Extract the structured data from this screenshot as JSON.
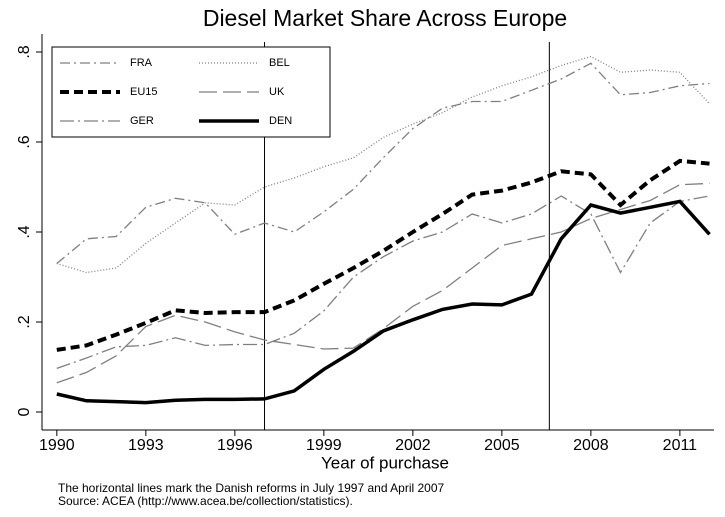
{
  "chart_data": {
    "type": "line",
    "title": "Diesel Market Share Across Europe",
    "x_label": "Year of purchase",
    "notes": [
      "The horizontal lines mark the Danish reforms in July 1997 and April 2007",
      "Source: ACEA (http://www.acea.be/collection/statistics)."
    ],
    "x": [
      1990,
      1991,
      1992,
      1993,
      1994,
      1995,
      1996,
      1997,
      1998,
      1999,
      2000,
      2001,
      2002,
      2003,
      2004,
      2005,
      2006,
      2007,
      2008,
      2009,
      2010,
      2011,
      2012
    ],
    "series": [
      {
        "name": "FRA",
        "color": "#7f7f7f",
        "width": 1.3,
        "dash": "10 4 2 4",
        "values": [
          0.33,
          0.385,
          0.39,
          0.455,
          0.475,
          0.465,
          0.395,
          0.42,
          0.4,
          0.445,
          0.495,
          0.565,
          0.63,
          0.675,
          0.69,
          0.69,
          0.715,
          0.74,
          0.775,
          0.705,
          0.71,
          0.725,
          0.73
        ]
      },
      {
        "name": "BEL",
        "color": "#7f7f7f",
        "width": 1.3,
        "dash": "1 2",
        "values": [
          0.33,
          0.31,
          0.32,
          0.375,
          0.42,
          0.465,
          0.46,
          0.5,
          0.52,
          0.545,
          0.565,
          0.61,
          0.64,
          0.665,
          0.7,
          0.725,
          0.745,
          0.77,
          0.79,
          0.755,
          0.76,
          0.755,
          0.685
        ]
      },
      {
        "name": "EU15",
        "color": "#000000",
        "width": 4,
        "dash": "9 5",
        "values": [
          0.138,
          0.148,
          0.172,
          0.198,
          0.226,
          0.22,
          0.222,
          0.222,
          0.248,
          0.285,
          0.32,
          0.358,
          0.4,
          0.44,
          0.483,
          0.492,
          0.51,
          0.535,
          0.528,
          0.46,
          0.515,
          0.558,
          0.552
        ]
      },
      {
        "name": "UK",
        "color": "#7f7f7f",
        "width": 1.3,
        "dash": "18 6",
        "values": [
          0.065,
          0.088,
          0.125,
          0.19,
          0.215,
          0.2,
          0.178,
          0.16,
          0.15,
          0.14,
          0.142,
          0.185,
          0.235,
          0.27,
          0.32,
          0.37,
          0.385,
          0.4,
          0.43,
          0.45,
          0.47,
          0.505,
          0.508
        ]
      },
      {
        "name": "GER",
        "color": "#7f7f7f",
        "width": 1.3,
        "dash": "14 4 2 4",
        "values": [
          0.097,
          0.12,
          0.145,
          0.148,
          0.165,
          0.148,
          0.15,
          0.15,
          0.175,
          0.225,
          0.3,
          0.345,
          0.38,
          0.4,
          0.44,
          0.42,
          0.44,
          0.48,
          0.44,
          0.31,
          0.42,
          0.468,
          0.48
        ]
      },
      {
        "name": "DEN",
        "color": "#000000",
        "width": 3.5,
        "dash": "",
        "values": [
          0.04,
          0.025,
          0.023,
          0.021,
          0.026,
          0.028,
          0.028,
          0.029,
          0.047,
          0.095,
          0.135,
          0.18,
          0.205,
          0.228,
          0.24,
          0.238,
          0.262,
          0.385,
          0.46,
          0.442,
          0.455,
          0.468,
          0.395
        ]
      }
    ],
    "vlines": [
      1997,
      2006.6
    ],
    "xlim": [
      1989.5,
      2012.15
    ],
    "xticks": [
      1990,
      1993,
      1996,
      1999,
      2002,
      2005,
      2008,
      2011
    ],
    "ylim": [
      -0.04,
      0.84
    ],
    "yticks": [
      0,
      {
        "value": 0.2,
        "label": ".2"
      },
      {
        "value": 0.4,
        "label": ".4"
      },
      {
        "value": 0.6,
        "label": ".6"
      },
      {
        "value": 0.8,
        "label": ".8"
      }
    ],
    "grid": false,
    "legend_columns": 2
  }
}
